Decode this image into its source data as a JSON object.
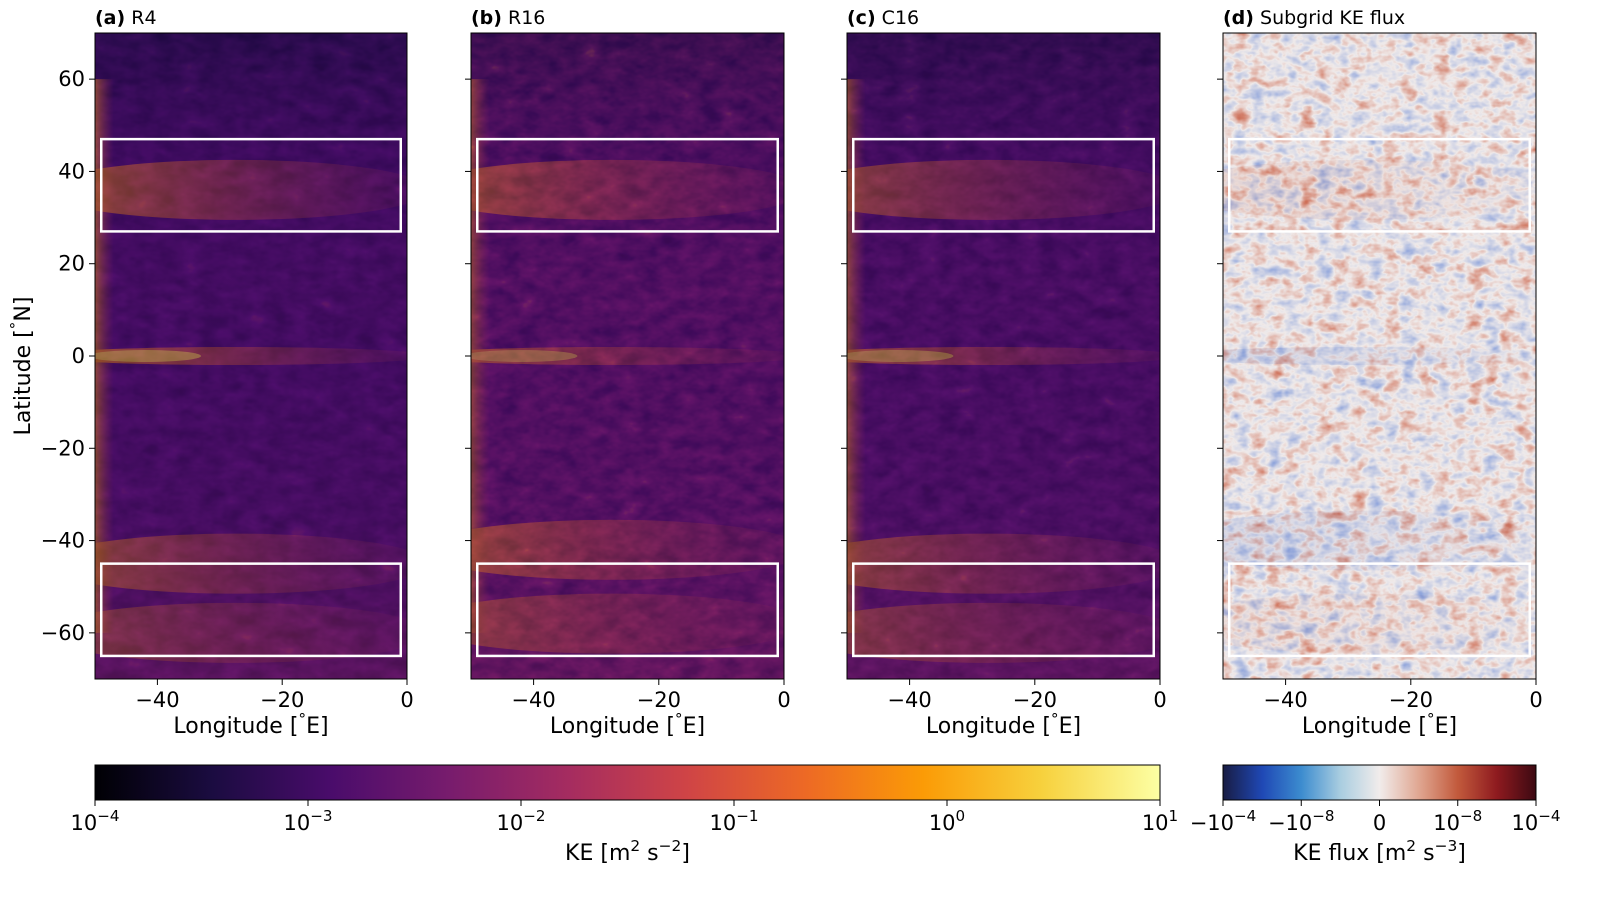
{
  "chart_data": [
    {
      "type": "heatmap",
      "panel": "(a)",
      "title": "R4",
      "variable": "KE",
      "xlabel": "Longitude [$^\\circ$E]",
      "ylabel": "Latitude [$^\\circ$N]",
      "xlim": [
        -50,
        0
      ],
      "ylim": [
        -70,
        70
      ],
      "xticks": [
        -40,
        -20,
        0
      ],
      "xtick_labels": [
        "−40",
        "−20",
        "0"
      ],
      "yticks": [
        60,
        40,
        20,
        0,
        -20,
        -40,
        -60
      ],
      "ytick_labels": [
        "60",
        "40",
        "20",
        "0",
        "−20",
        "−40",
        "−60"
      ],
      "regions": [
        {
          "lon": [
            -49,
            -1
          ],
          "lat": [
            27,
            47
          ]
        },
        {
          "lon": [
            -49,
            -1
          ],
          "lat": [
            -65,
            -45
          ]
        }
      ],
      "features": [
        {
          "lat": 0,
          "strength": 1.0
        },
        {
          "lat": 36,
          "strength": 0.9
        },
        {
          "lat": -45,
          "strength": 0.8
        },
        {
          "lat": -60,
          "strength": 0.6
        }
      ]
    },
    {
      "type": "heatmap",
      "panel": "(b)",
      "title": "R16",
      "variable": "KE",
      "xlabel": "Longitude [$^\\circ$E]",
      "xlim": [
        -50,
        0
      ],
      "ylim": [
        -70,
        70
      ],
      "xticks": [
        -40,
        -20,
        0
      ],
      "xtick_labels": [
        "−40",
        "−20",
        "0"
      ],
      "regions": [
        {
          "lon": [
            -49,
            -1
          ],
          "lat": [
            27,
            47
          ]
        },
        {
          "lon": [
            -49,
            -1
          ],
          "lat": [
            -65,
            -45
          ]
        }
      ],
      "features": [
        {
          "lat": 0,
          "strength": 1.0
        },
        {
          "lat": 36,
          "strength": 1.0
        },
        {
          "lat": -42,
          "strength": 1.0
        },
        {
          "lat": -58,
          "strength": 0.8
        }
      ]
    },
    {
      "type": "heatmap",
      "panel": "(c)",
      "title": "C16",
      "variable": "KE",
      "xlabel": "Longitude [$^\\circ$E]",
      "xlim": [
        -50,
        0
      ],
      "ylim": [
        -70,
        70
      ],
      "xticks": [
        -40,
        -20,
        0
      ],
      "xtick_labels": [
        "−40",
        "−20",
        "0"
      ],
      "regions": [
        {
          "lon": [
            -49,
            -1
          ],
          "lat": [
            27,
            47
          ]
        },
        {
          "lon": [
            -49,
            -1
          ],
          "lat": [
            -65,
            -45
          ]
        }
      ],
      "features": [
        {
          "lat": 0,
          "strength": 1.0
        },
        {
          "lat": 36,
          "strength": 0.85
        },
        {
          "lat": -45,
          "strength": 0.85
        },
        {
          "lat": -60,
          "strength": 0.7
        }
      ]
    },
    {
      "type": "heatmap",
      "panel": "(d)",
      "title": "Subgrid KE flux",
      "variable": "KE flux",
      "xlabel": "Longitude [$^\\circ$E]",
      "xlim": [
        -50,
        0
      ],
      "ylim": [
        -70,
        70
      ],
      "xticks": [
        -40,
        -20,
        0
      ],
      "xtick_labels": [
        "−40",
        "−20",
        "0"
      ],
      "regions": [
        {
          "lon": [
            -49,
            -1
          ],
          "lat": [
            27,
            47
          ]
        },
        {
          "lon": [
            -49,
            -1
          ],
          "lat": [
            -65,
            -45
          ]
        }
      ],
      "features": [
        {
          "lat": 0,
          "strength": 0.9
        },
        {
          "lat": 36,
          "strength": 0.9
        },
        {
          "lat": -40,
          "strength": 0.8
        },
        {
          "lat": -58,
          "strength": 0.6
        }
      ]
    }
  ],
  "colorbars": {
    "ke": {
      "label": "KE [m$^2$ s$^{-2}$]",
      "colormap": "inferno",
      "scale": "log",
      "range": [
        0.0001,
        10
      ],
      "ticks": [
        0.0001,
        0.001,
        0.01,
        0.1,
        1,
        10
      ],
      "tick_labels": [
        {
          "base": "10",
          "exp": "−4"
        },
        {
          "base": "10",
          "exp": "−3"
        },
        {
          "base": "10",
          "exp": "−2"
        },
        {
          "base": "10",
          "exp": "−1"
        },
        {
          "base": "10",
          "exp": "0"
        },
        {
          "base": "10",
          "exp": "1"
        }
      ]
    },
    "flux": {
      "label": "KE flux [m$^2$ s$^{-3}$]",
      "colormap": "balance",
      "scale": "symlog",
      "range": [
        -0.0001,
        0.0001
      ],
      "ticks": [
        -0.0001,
        -1e-08,
        0,
        1e-08,
        0.0001
      ],
      "tick_labels": [
        {
          "base": "−10",
          "exp": "−4"
        },
        {
          "base": "−10",
          "exp": "−8"
        },
        {
          "base": "0",
          "exp": ""
        },
        {
          "base": "10",
          "exp": "−8"
        },
        {
          "base": "10",
          "exp": "−4"
        }
      ]
    }
  },
  "colors": {
    "inferno": [
      "#000004",
      "#1b0c41",
      "#4a0c6b",
      "#781c6d",
      "#a52c60",
      "#cf4446",
      "#ed6925",
      "#fb9b06",
      "#f7d13d",
      "#fcffa4"
    ],
    "balance": [
      "#181c43",
      "#1f48b5",
      "#3c8ccf",
      "#a9cde0",
      "#f1eceb",
      "#e0a792",
      "#c25a3c",
      "#8e1a1f",
      "#3c0912"
    ],
    "region_box": "#ffffff"
  }
}
